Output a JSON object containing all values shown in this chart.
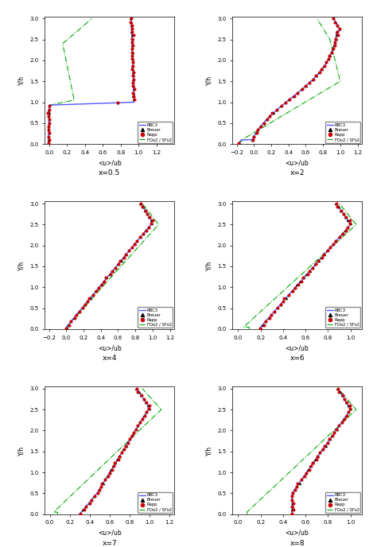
{
  "subplots": [
    {
      "label": "x=0.5",
      "xlim": [
        -0.05,
        1.4
      ],
      "xticks": [
        0,
        0.2,
        0.4,
        0.6,
        0.8,
        1.0,
        1.2
      ]
    },
    {
      "label": "x=2",
      "xlim": [
        -0.25,
        1.25
      ],
      "xticks": [
        -0.2,
        0,
        0.2,
        0.4,
        0.6,
        0.8,
        1.0,
        1.2
      ]
    },
    {
      "label": "x=4",
      "xlim": [
        -0.25,
        1.25
      ],
      "xticks": [
        -0.2,
        0,
        0.2,
        0.4,
        0.6,
        0.8,
        1.0,
        1.2
      ]
    },
    {
      "label": "x=6",
      "xlim": [
        -0.05,
        1.1
      ],
      "xticks": [
        0,
        0.2,
        0.4,
        0.6,
        0.8,
        1.0
      ]
    },
    {
      "label": "x=7",
      "xlim": [
        -0.05,
        1.25
      ],
      "xticks": [
        0,
        0.2,
        0.4,
        0.6,
        0.8,
        1.0,
        1.2
      ]
    },
    {
      "label": "x=8",
      "xlim": [
        -0.05,
        1.1
      ],
      "xticks": [
        0,
        0.2,
        0.4,
        0.6,
        0.8,
        1.0
      ]
    }
  ],
  "ylim": [
    0,
    3.05
  ],
  "yticks": [
    0,
    0.5,
    1.0,
    1.5,
    2.0,
    2.5,
    3.0
  ],
  "ylabel": "Y/h",
  "xlabel": "<u>/ub",
  "colors": {
    "RBC3": "#5555ff",
    "Breuer": "#111111",
    "Rapp": "#cc0000",
    "FDo2": "#00aa00"
  },
  "legend_entries": [
    "RBC3",
    "Breuer",
    "Rapp",
    "FDo2 / SFo2"
  ],
  "x_stations": [
    0.5,
    2,
    4,
    6,
    7,
    8
  ]
}
